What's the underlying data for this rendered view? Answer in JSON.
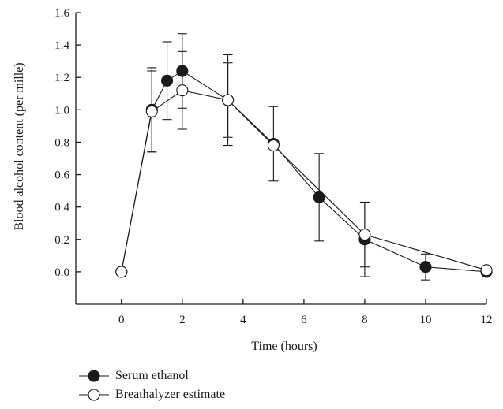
{
  "chart_data": {
    "type": "line",
    "ylabel": "Blood alcohol content (per mille)",
    "xlabel": "Time (hours)",
    "xlim": [
      -1.5,
      12
    ],
    "ylim": [
      -0.2,
      1.6
    ],
    "xticks": [
      0,
      2,
      4,
      6,
      8,
      10,
      12
    ],
    "yticks": [
      0.0,
      0.2,
      0.4,
      0.6,
      0.8,
      1.0,
      1.2,
      1.4,
      1.6
    ],
    "xtick_labels": [
      "0",
      "2",
      "4",
      "6",
      "8",
      "10",
      "12"
    ],
    "ytick_labels": [
      "0.0",
      "0.2",
      "0.4",
      "0.6",
      "0.8",
      "1.0",
      "1.2",
      "1.4",
      "1.6"
    ],
    "series": [
      {
        "name": "Serum ethanol",
        "marker": "filled-circle",
        "color": "#1a1a1a",
        "x": [
          0,
          1,
          1.5,
          2,
          3.5,
          5,
          6.5,
          8,
          10,
          12
        ],
        "y": [
          0.0,
          1.0,
          1.18,
          1.24,
          1.06,
          0.79,
          0.46,
          0.2,
          0.03,
          0.0
        ],
        "err": [
          0,
          0.26,
          0.24,
          0.23,
          0.23,
          0.23,
          0.27,
          0.23,
          0.08,
          0.02
        ]
      },
      {
        "name": "Breathalyzer estimate",
        "marker": "open-circle",
        "color": "#1a1a1a",
        "x": [
          0,
          1,
          2,
          3.5,
          5,
          8,
          12
        ],
        "y": [
          0.0,
          0.99,
          1.12,
          1.06,
          0.78,
          0.23,
          0.01
        ],
        "err": [
          0,
          0.25,
          0.24,
          0.28,
          0.0,
          0.2,
          0.02
        ]
      }
    ]
  }
}
